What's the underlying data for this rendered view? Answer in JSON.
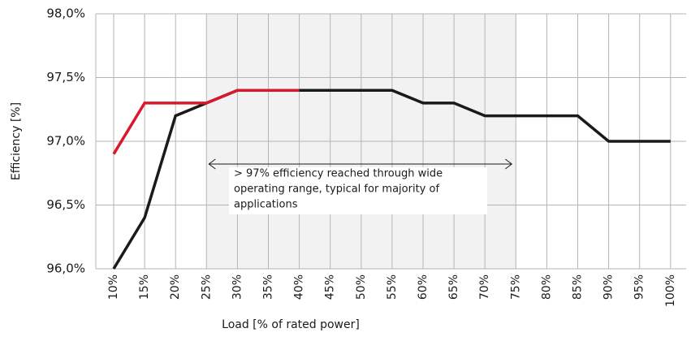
{
  "chart_data": {
    "type": "line",
    "xlabel": "Load [% of rated power]",
    "ylabel": "Efficiency [%]",
    "categories": [
      "10%",
      "15%",
      "20%",
      "25%",
      "30%",
      "35%",
      "40%",
      "45%",
      "50%",
      "55%",
      "60%",
      "65%",
      "70%",
      "75%",
      "80%",
      "85%",
      "90%",
      "95%",
      "100%"
    ],
    "series": [
      {
        "color": "#1a1a1a",
        "values": [
          96.0,
          96.4,
          97.2,
          97.3,
          97.4,
          97.4,
          97.4,
          97.4,
          97.4,
          97.4,
          97.3,
          97.3,
          97.2,
          97.2,
          97.2,
          97.2,
          97.0,
          97.0,
          97.0
        ]
      },
      {
        "color": "#d9182d",
        "values": [
          96.9,
          97.3,
          97.3,
          97.3,
          97.4,
          97.4,
          97.4,
          null,
          null,
          null,
          null,
          null,
          null,
          null,
          null,
          null,
          null,
          null,
          null
        ]
      }
    ],
    "ylim": [
      96.0,
      98.0
    ],
    "yticks": [
      {
        "value": 96.0,
        "label": "96,0%"
      },
      {
        "value": 96.5,
        "label": "96,5%"
      },
      {
        "value": 97.0,
        "label": "97,0%"
      },
      {
        "value": 97.5,
        "label": "97,5%"
      },
      {
        "value": 98.0,
        "label": "98,0%"
      }
    ],
    "grid": true,
    "annotation": [
      "> 97% efficiency reached through wide",
      "operating range, typical for majority of",
      "applications"
    ]
  }
}
